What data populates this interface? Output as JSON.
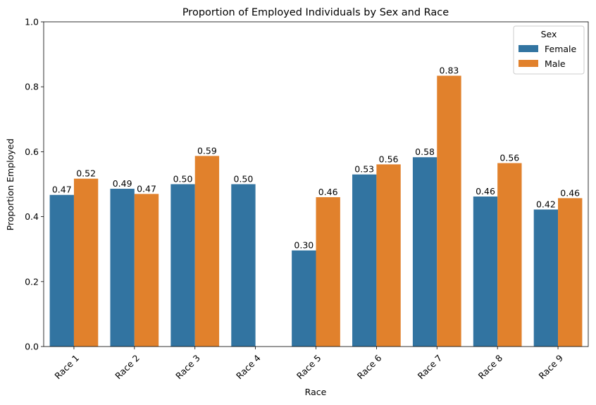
{
  "chart_data": {
    "type": "bar",
    "title": "Proportion of Employed Individuals by Sex and Race",
    "xlabel": "Race",
    "ylabel": "Proportion Employed",
    "categories": [
      "Race 1",
      "Race 2",
      "Race 3",
      "Race 4",
      "Race 5",
      "Race 6",
      "Race 7",
      "Race 8",
      "Race 9"
    ],
    "series": [
      {
        "name": "Female",
        "color": "#3274a1",
        "values": [
          0.467,
          0.486,
          0.5,
          0.5,
          0.296,
          0.53,
          0.583,
          0.462,
          0.422
        ],
        "labels": [
          "0.47",
          "0.49",
          "0.50",
          "0.50",
          "0.30",
          "0.53",
          "0.58",
          "0.46",
          "0.42"
        ]
      },
      {
        "name": "Male",
        "color": "#e1812c",
        "values": [
          0.517,
          0.47,
          0.587,
          null,
          0.46,
          0.561,
          0.834,
          0.565,
          0.457
        ],
        "labels": [
          "0.52",
          "0.47",
          "0.59",
          "",
          "0.46",
          "0.56",
          "0.83",
          "0.56",
          "0.46"
        ]
      }
    ],
    "ylim": [
      0,
      1.0
    ],
    "yticks": [
      "0.0",
      "0.2",
      "0.4",
      "0.6",
      "0.8",
      "1.0"
    ],
    "ytick_values": [
      0,
      0.2,
      0.4,
      0.6,
      0.8,
      1.0
    ],
    "legend": {
      "title": "Sex",
      "position": "top-right"
    },
    "grid": false,
    "xtick_rotation": 45
  }
}
